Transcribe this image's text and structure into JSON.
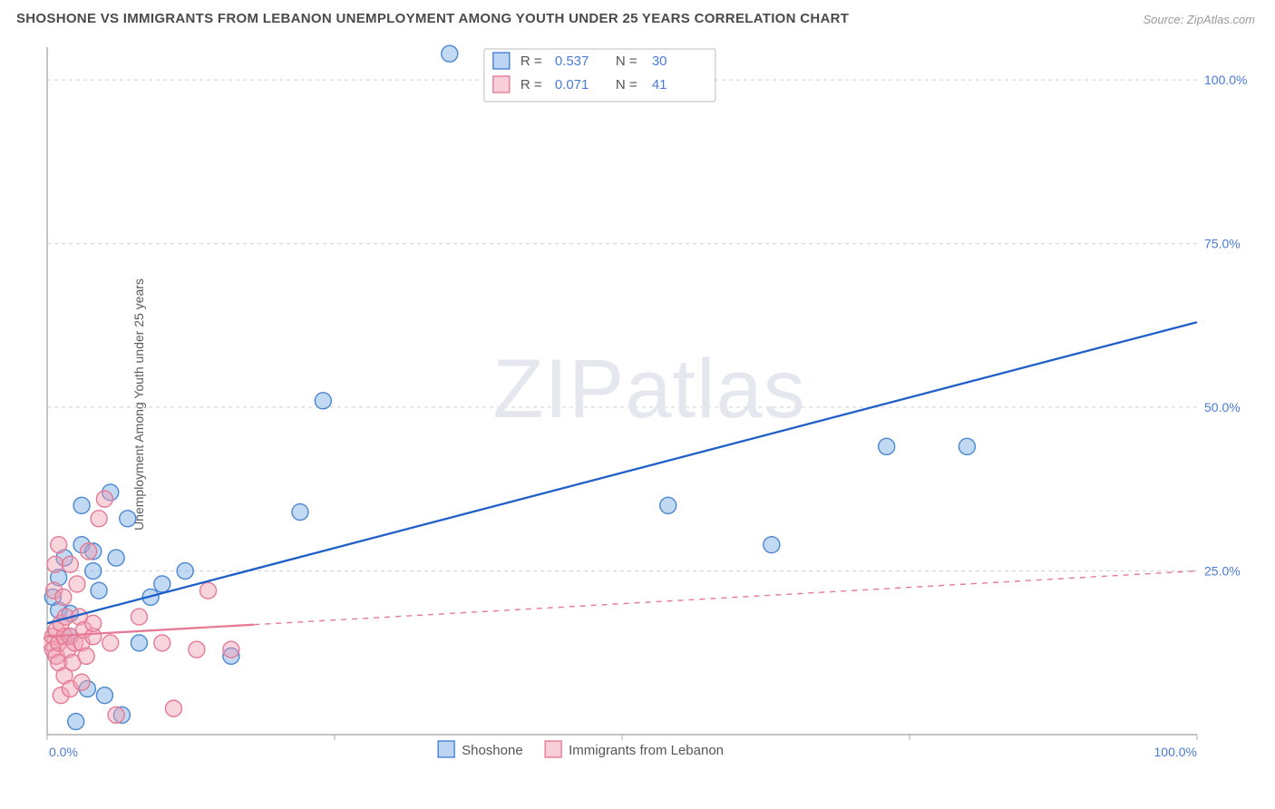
{
  "title": "SHOSHONE VS IMMIGRANTS FROM LEBANON UNEMPLOYMENT AMONG YOUTH UNDER 25 YEARS CORRELATION CHART",
  "source": "Source: ZipAtlas.com",
  "ylabel": "Unemployment Among Youth under 25 years",
  "watermark": "ZIPatlas",
  "chart": {
    "type": "scatter-correlation",
    "background_color": "#ffffff",
    "grid_color": "#d0d0d0",
    "axis_color": "#888888",
    "label_color": "#4a7bd6",
    "xlim": [
      0,
      100
    ],
    "ylim": [
      0,
      105
    ],
    "y_ticks": [
      25,
      50,
      75,
      100
    ],
    "y_tick_labels": [
      "25.0%",
      "50.0%",
      "75.0%",
      "100.0%"
    ],
    "x_ticks": [
      0,
      25,
      50,
      75,
      100
    ],
    "x_left_label": "0.0%",
    "x_right_label": "100.0%",
    "marker_radius": 9
  },
  "series": [
    {
      "name": "Shoshone",
      "color_fill": "rgba(120,170,230,0.45)",
      "color_stroke": "#4a87d0",
      "trend_color": "#1f5fc9",
      "R": "0.537",
      "N": "30",
      "trend": {
        "x1": 0,
        "y1": 17,
        "x2": 100,
        "y2": 63,
        "dashed_from_x": null
      },
      "points": [
        [
          0.5,
          21
        ],
        [
          1,
          19
        ],
        [
          1,
          24
        ],
        [
          1.5,
          27
        ],
        [
          2,
          15
        ],
        [
          2,
          18.5
        ],
        [
          2.5,
          2
        ],
        [
          3,
          35
        ],
        [
          3,
          29
        ],
        [
          3.5,
          7
        ],
        [
          4,
          25
        ],
        [
          4,
          28
        ],
        [
          4.5,
          22
        ],
        [
          5,
          6
        ],
        [
          5.5,
          37
        ],
        [
          6,
          27
        ],
        [
          6.5,
          3
        ],
        [
          7,
          33
        ],
        [
          8,
          14
        ],
        [
          9,
          21
        ],
        [
          10,
          23
        ],
        [
          12,
          25
        ],
        [
          16,
          12
        ],
        [
          22,
          34
        ],
        [
          24,
          51
        ],
        [
          35,
          104
        ],
        [
          54,
          35
        ],
        [
          63,
          29
        ],
        [
          73,
          44
        ],
        [
          80,
          44
        ]
      ]
    },
    {
      "name": "Immigrants from Lebanon",
      "color_fill": "rgba(240,160,180,0.45)",
      "color_stroke": "#e57a95",
      "trend_color": "#e57a95",
      "R": "0.071",
      "N": "41",
      "trend": {
        "x1": 0,
        "y1": 15,
        "x2": 100,
        "y2": 25,
        "dashed_from_x": 18
      },
      "points": [
        [
          0.3,
          14
        ],
        [
          0.5,
          15
        ],
        [
          0.5,
          13
        ],
        [
          0.6,
          22
        ],
        [
          0.7,
          26
        ],
        [
          0.8,
          12
        ],
        [
          0.8,
          16
        ],
        [
          1,
          11
        ],
        [
          1,
          14
        ],
        [
          1,
          29
        ],
        [
          1.2,
          6
        ],
        [
          1.2,
          17
        ],
        [
          1.4,
          21
        ],
        [
          1.5,
          15
        ],
        [
          1.5,
          9
        ],
        [
          1.6,
          18
        ],
        [
          1.8,
          13
        ],
        [
          2,
          7
        ],
        [
          2,
          15
        ],
        [
          2,
          26
        ],
        [
          2.2,
          11
        ],
        [
          2.4,
          14
        ],
        [
          2.6,
          23
        ],
        [
          2.8,
          18
        ],
        [
          3,
          14
        ],
        [
          3,
          8
        ],
        [
          3.2,
          16
        ],
        [
          3.4,
          12
        ],
        [
          3.6,
          28
        ],
        [
          4,
          15
        ],
        [
          4,
          17
        ],
        [
          4.5,
          33
        ],
        [
          5,
          36
        ],
        [
          5.5,
          14
        ],
        [
          6,
          3
        ],
        [
          8,
          18
        ],
        [
          10,
          14
        ],
        [
          11,
          4
        ],
        [
          13,
          13
        ],
        [
          14,
          22
        ],
        [
          16,
          13
        ]
      ]
    }
  ],
  "legend_top": {
    "rows": [
      {
        "swatch": "blue",
        "R_label": "R =",
        "R": "0.537",
        "N_label": "N =",
        "N": "30"
      },
      {
        "swatch": "pink",
        "R_label": "R =",
        "R": "0.071",
        "N_label": "N =",
        "N": "41"
      }
    ]
  },
  "legend_bottom": {
    "items": [
      {
        "swatch": "blue",
        "label": "Shoshone"
      },
      {
        "swatch": "pink",
        "label": "Immigrants from Lebanon"
      }
    ]
  }
}
